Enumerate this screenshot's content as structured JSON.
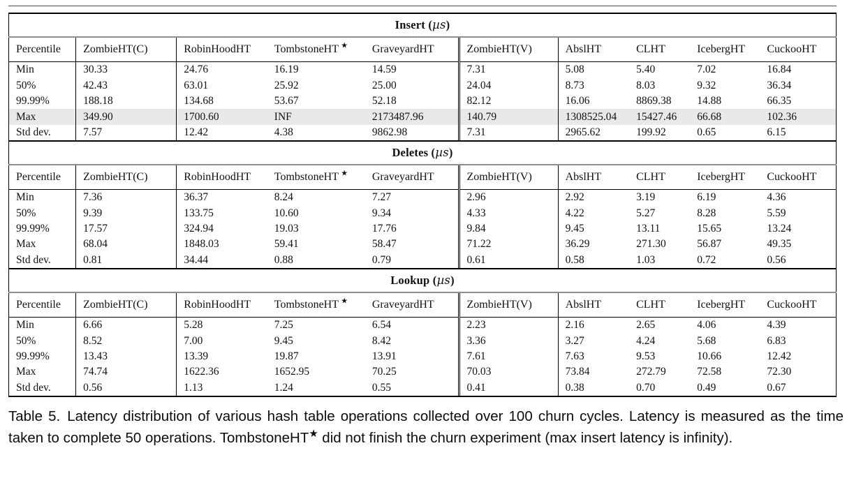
{
  "colors": {
    "highlight_row_bg": "#e9e9e9",
    "gray_rule": "#8f8f8f",
    "black_rule": "#000000"
  },
  "column_widths_pct": [
    8.11,
    12.16,
    10.98,
    11.82,
    11.32,
    11.99,
    8.61,
    7.35,
    8.45,
    9.21
  ],
  "tables": [
    {
      "title_op": "Insert",
      "title_unit_italic": "µs",
      "columns": [
        "Percentile",
        "ZombieHT(C)",
        "RobinHoodHT",
        "TombstoneHT ★",
        "GraveyardHT",
        "ZombieHT(V)",
        "AbslHT",
        "CLHT",
        "IcebergHT",
        "CuckooHT"
      ],
      "bold_cols": [
        1,
        5
      ],
      "highlight_row_index": 3,
      "rows": [
        {
          "label": "Min",
          "values": [
            "30.33",
            "24.76",
            "16.19",
            "14.59",
            "7.31",
            "5.08",
            "5.40",
            "7.02",
            "16.84"
          ]
        },
        {
          "label": "50%",
          "values": [
            "42.43",
            "63.01",
            "25.92",
            "25.00",
            "24.04",
            "8.73",
            "8.03",
            "9.32",
            "36.34"
          ]
        },
        {
          "label": "99.99%",
          "values": [
            "188.18",
            "134.68",
            "53.67",
            "52.18",
            "82.12",
            "16.06",
            "8869.38",
            "14.88",
            "66.35"
          ]
        },
        {
          "label": "Max",
          "values": [
            "349.90",
            "1700.60",
            "INF",
            "2173487.96",
            "140.79",
            "1308525.04",
            "15427.46",
            "66.68",
            "102.36"
          ]
        },
        {
          "label": "Std dev.",
          "values": [
            "7.57",
            "12.42",
            "4.38",
            "9862.98",
            "7.31",
            "2965.62",
            "199.92",
            "0.65",
            "6.15"
          ]
        }
      ]
    },
    {
      "title_op": "Deletes",
      "title_unit_italic": "µs",
      "columns": [
        "Percentile",
        "ZombieHT(C)",
        "RobinHoodHT",
        "TombstoneHT ★",
        "GraveyardHT",
        "ZombieHT(V)",
        "AbslHT",
        "CLHT",
        "IcebergHT",
        "CuckooHT"
      ],
      "bold_cols": [],
      "highlight_row_index": -1,
      "rows": [
        {
          "label": "Min",
          "values": [
            "7.36",
            "36.37",
            "8.24",
            "7.27",
            "2.96",
            "2.92",
            "3.19",
            "6.19",
            "4.36"
          ]
        },
        {
          "label": "50%",
          "values": [
            "9.39",
            "133.75",
            "10.60",
            "9.34",
            "4.33",
            "4.22",
            "5.27",
            "8.28",
            "5.59"
          ]
        },
        {
          "label": "99.99%",
          "values": [
            "17.57",
            "324.94",
            "19.03",
            "17.76",
            "9.84",
            "9.45",
            "13.11",
            "15.65",
            "13.24"
          ]
        },
        {
          "label": "Max",
          "values": [
            "68.04",
            "1848.03",
            "59.41",
            "58.47",
            "71.22",
            "36.29",
            "271.30",
            "56.87",
            "49.35"
          ]
        },
        {
          "label": "Std dev.",
          "values": [
            "0.81",
            "34.44",
            "0.88",
            "0.79",
            "0.61",
            "0.58",
            "1.03",
            "0.72",
            "0.56"
          ]
        }
      ]
    },
    {
      "title_op": "Lookup",
      "title_unit_italic": "µs",
      "columns": [
        "Percentile",
        "ZombieHT(C)",
        "RobinHoodHT",
        "TombstoneHT ★",
        "GraveyardHT",
        "ZombieHT(V)",
        "AbslHT",
        "CLHT",
        "IcebergHT",
        "CuckooHT"
      ],
      "bold_cols": [],
      "highlight_row_index": -1,
      "rows": [
        {
          "label": "Min",
          "values": [
            "6.66",
            "5.28",
            "7.25",
            "6.54",
            "2.23",
            "2.16",
            "2.65",
            "4.06",
            "4.39"
          ]
        },
        {
          "label": "50%",
          "values": [
            "8.52",
            "7.00",
            "9.45",
            "8.42",
            "3.36",
            "3.27",
            "4.24",
            "5.68",
            "6.83"
          ]
        },
        {
          "label": "99.99%",
          "values": [
            "13.43",
            "13.39",
            "19.87",
            "13.91",
            "7.61",
            "7.63",
            "9.53",
            "10.66",
            "12.42"
          ]
        },
        {
          "label": "Max",
          "values": [
            "74.74",
            "1622.36",
            "1652.95",
            "70.25",
            "70.03",
            "73.84",
            "272.79",
            "72.58",
            "72.30"
          ]
        },
        {
          "label": "Std dev.",
          "values": [
            "0.56",
            "1.13",
            "1.24",
            "0.55",
            "0.41",
            "0.38",
            "0.70",
            "0.49",
            "0.67"
          ]
        }
      ]
    }
  ],
  "caption": {
    "label": "Table 5.",
    "before_star": "Latency distribution of various hash table operations collected over 100 churn cycles. Latency is measured as the time taken to complete 50 operations. TombstoneHT",
    "star": "★",
    "after_star": " did not finish the churn experiment (max insert latency is infinity)."
  }
}
